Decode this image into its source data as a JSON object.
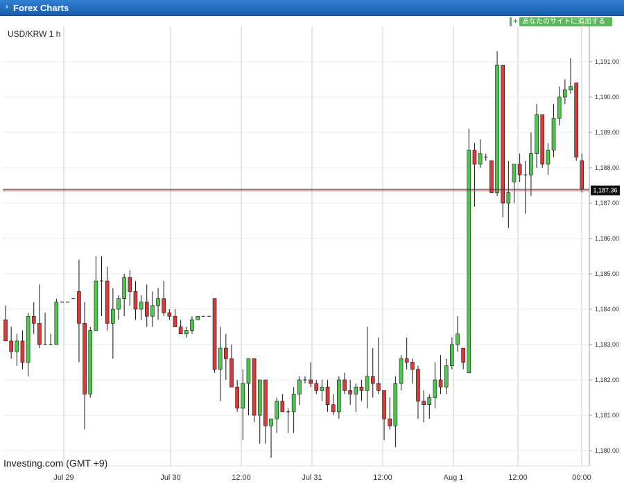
{
  "header": {
    "title": "Forex Charts"
  },
  "add_button": {
    "label": "あなたのサイトに追加する"
  },
  "branding": "Investing.com (GMT +9)",
  "colors": {
    "up": "#4cc84c",
    "down": "#d83a3a",
    "price_line": "#c0392b",
    "header": "#1f66b8"
  },
  "chart_data": {
    "type": "candlestick",
    "title": "USD/KRW 1 h",
    "ylim": [
      1179.75,
      1191.6
    ],
    "y_ticks": [
      "1,191.00",
      "1,190.00",
      "1,189.00",
      "1,188.00",
      "1,187.00",
      "1,186.00",
      "1,185.00",
      "1,184.00",
      "1,183.00",
      "1,182.00",
      "1,181.00",
      "1,180.00"
    ],
    "x_labels": [
      "Jul 29",
      "Jul 30",
      "12:00",
      "Jul 31",
      "12:00",
      "Aug 1",
      "12:00",
      "00:00"
    ],
    "current_price": 1187.36,
    "current_price_label": "1,187.36",
    "candles": [
      [
        1183.7,
        1184.1,
        1183.1,
        1183.1
      ],
      [
        1183.1,
        1183.5,
        1182.6,
        1182.8
      ],
      [
        1182.8,
        1183.3,
        1182.4,
        1183.1
      ],
      [
        1183.1,
        1183.4,
        1182.3,
        1182.5
      ],
      [
        1182.5,
        1183.9,
        1182.1,
        1183.8
      ],
      [
        1183.8,
        1184.2,
        1183.3,
        1183.6
      ],
      [
        1183.6,
        1184.7,
        1182.9,
        1183.0
      ],
      [
        1183.0,
        1183.9,
        1183.0,
        1183.0
      ],
      [
        1183.0,
        1183.3,
        1183.0,
        1183.0
      ],
      [
        1183.0,
        1184.3,
        1183.0,
        1184.2
      ],
      [
        1184.2,
        1184.2,
        1184.2,
        1184.2
      ],
      [
        1184.2,
        1184.2,
        1184.2,
        1184.2
      ],
      [
        1184.3,
        1184.3,
        1184.3,
        1184.3
      ],
      [
        1184.5,
        1185.4,
        1182.5,
        1183.6
      ],
      [
        1183.6,
        1184.2,
        1180.6,
        1181.6
      ],
      [
        1181.6,
        1183.5,
        1181.5,
        1183.4
      ],
      [
        1183.4,
        1185.5,
        1183.4,
        1184.8
      ],
      [
        1184.8,
        1185.5,
        1183.8,
        1184.8
      ],
      [
        1184.8,
        1185.2,
        1183.4,
        1183.6
      ],
      [
        1183.6,
        1184.6,
        1182.6,
        1184.0
      ],
      [
        1184.0,
        1184.4,
        1183.7,
        1184.3
      ],
      [
        1184.3,
        1185.0,
        1183.8,
        1184.9
      ],
      [
        1184.9,
        1185.1,
        1184.1,
        1184.5
      ],
      [
        1184.5,
        1184.8,
        1183.7,
        1184.0
      ],
      [
        1184.0,
        1184.4,
        1183.7,
        1184.2
      ],
      [
        1184.2,
        1184.7,
        1183.5,
        1183.8
      ],
      [
        1183.8,
        1184.5,
        1183.5,
        1184.1
      ],
      [
        1184.1,
        1184.6,
        1183.7,
        1184.3
      ],
      [
        1184.3,
        1184.8,
        1183.8,
        1183.9
      ],
      [
        1183.9,
        1184.0,
        1183.7,
        1183.8
      ],
      [
        1183.8,
        1184.0,
        1183.5,
        1183.5
      ],
      [
        1183.5,
        1183.7,
        1183.3,
        1183.3
      ],
      [
        1183.3,
        1183.5,
        1183.2,
        1183.4
      ],
      [
        1183.4,
        1183.8,
        1183.3,
        1183.7
      ],
      [
        1183.7,
        1183.8,
        1183.7,
        1183.8
      ],
      [
        1183.8,
        1183.8,
        1183.8,
        1183.8
      ],
      [
        1183.8,
        1183.8,
        1183.8,
        1183.8
      ],
      [
        1184.3,
        1184.3,
        1182.2,
        1182.3
      ],
      [
        1182.3,
        1183.5,
        1181.4,
        1182.9
      ],
      [
        1182.9,
        1183.3,
        1182.0,
        1182.6
      ],
      [
        1182.6,
        1183.0,
        1181.8,
        1181.8
      ],
      [
        1181.8,
        1182.0,
        1181.1,
        1181.2
      ],
      [
        1181.2,
        1182.3,
        1180.3,
        1181.9
      ],
      [
        1181.9,
        1182.6,
        1181.0,
        1182.6
      ],
      [
        1182.6,
        1182.6,
        1180.8,
        1181.0
      ],
      [
        1181.0,
        1182.0,
        1180.2,
        1182.0
      ],
      [
        1182.0,
        1182.0,
        1180.2,
        1180.7
      ],
      [
        1180.7,
        1180.9,
        1179.8,
        1180.9
      ],
      [
        1180.9,
        1181.5,
        1180.5,
        1181.4
      ],
      [
        1181.4,
        1181.6,
        1181.1,
        1181.1
      ],
      [
        1181.1,
        1181.2,
        1180.5,
        1181.1
      ],
      [
        1181.1,
        1181.8,
        1180.5,
        1181.6
      ],
      [
        1181.6,
        1182.1,
        1181.3,
        1182.0
      ],
      [
        1182.0,
        1182.1,
        1181.9,
        1182.0
      ],
      [
        1182.0,
        1182.5,
        1181.8,
        1181.9
      ],
      [
        1181.9,
        1182.0,
        1181.6,
        1181.7
      ],
      [
        1181.7,
        1182.0,
        1181.4,
        1181.8
      ],
      [
        1181.8,
        1182.0,
        1181.1,
        1181.3
      ],
      [
        1181.3,
        1181.6,
        1181.0,
        1181.1
      ],
      [
        1181.1,
        1182.1,
        1180.9,
        1182.0
      ],
      [
        1182.0,
        1182.2,
        1181.6,
        1181.7
      ],
      [
        1181.7,
        1182.0,
        1181.3,
        1181.6
      ],
      [
        1181.6,
        1181.9,
        1181.1,
        1181.8
      ],
      [
        1181.8,
        1182.0,
        1181.4,
        1181.7
      ],
      [
        1181.7,
        1183.5,
        1181.2,
        1182.1
      ],
      [
        1182.1,
        1182.9,
        1181.5,
        1181.9
      ],
      [
        1181.9,
        1183.2,
        1181.6,
        1181.7
      ],
      [
        1181.7,
        1181.7,
        1180.3,
        1180.9
      ],
      [
        1180.9,
        1181.5,
        1180.6,
        1180.7
      ],
      [
        1180.7,
        1182.1,
        1180.1,
        1181.9
      ],
      [
        1181.9,
        1182.7,
        1181.7,
        1182.6
      ],
      [
        1182.6,
        1183.2,
        1182.3,
        1182.5
      ],
      [
        1182.5,
        1182.6,
        1181.9,
        1182.3
      ],
      [
        1182.3,
        1182.4,
        1180.9,
        1181.4
      ],
      [
        1181.4,
        1181.7,
        1180.8,
        1181.3
      ],
      [
        1181.3,
        1181.6,
        1180.9,
        1181.5
      ],
      [
        1181.5,
        1182.5,
        1181.2,
        1182.0
      ],
      [
        1182.0,
        1182.7,
        1181.6,
        1181.8
      ],
      [
        1181.8,
        1182.6,
        1181.6,
        1182.4
      ],
      [
        1182.4,
        1183.2,
        1182.3,
        1183.0
      ],
      [
        1183.0,
        1183.8,
        1182.8,
        1183.3
      ],
      [
        1182.9,
        1182.9,
        1182.3,
        1182.5
      ],
      [
        1182.2,
        1189.1,
        1182.2,
        1188.5
      ],
      [
        1188.5,
        1188.7,
        1186.9,
        1188.1
      ],
      [
        1188.1,
        1188.8,
        1188.0,
        1188.4
      ],
      [
        1188.3,
        1188.4,
        1188.2,
        1188.3
      ],
      [
        1188.2,
        1188.2,
        1187.3,
        1187.3
      ],
      [
        1187.3,
        1191.3,
        1187.2,
        1190.9
      ],
      [
        1190.9,
        1190.9,
        1186.6,
        1187.0
      ],
      [
        1187.0,
        1188.2,
        1186.3,
        1187.3
      ],
      [
        1187.6,
        1188.1,
        1187.0,
        1188.1
      ],
      [
        1188.1,
        1188.4,
        1187.6,
        1187.8
      ],
      [
        1187.8,
        1188.2,
        1186.7,
        1187.8
      ],
      [
        1187.8,
        1189.0,
        1187.2,
        1188.4
      ],
      [
        1188.4,
        1189.8,
        1188.0,
        1189.5
      ],
      [
        1189.5,
        1189.5,
        1188.0,
        1188.1
      ],
      [
        1188.1,
        1188.7,
        1187.8,
        1188.5
      ],
      [
        1188.5,
        1189.8,
        1188.3,
        1189.4
      ],
      [
        1189.4,
        1190.3,
        1189.2,
        1190.0
      ],
      [
        1190.0,
        1190.5,
        1189.8,
        1190.2
      ],
      [
        1190.2,
        1191.1,
        1190.1,
        1190.3
      ],
      [
        1190.4,
        1190.4,
        1188.2,
        1188.3
      ],
      [
        1188.2,
        1188.4,
        1187.3,
        1187.4
      ]
    ]
  }
}
